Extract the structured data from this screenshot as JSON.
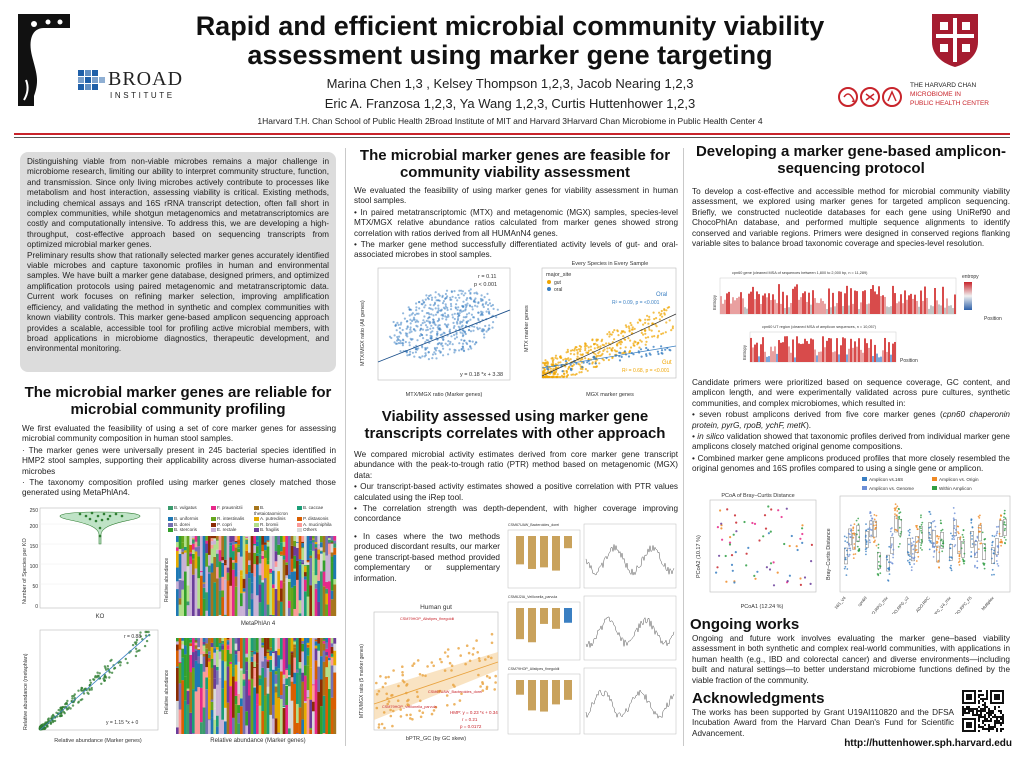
{
  "header": {
    "title_line1": "Rapid and efficient microbial community viability",
    "title_line2": "assessment using marker gene targeting",
    "authors_line1": "Marina Chen 1,3 , Kelsey Thompson 1,2,3, Jacob Nearing 1,2,3",
    "authors_line2": "Eric A. Franzosa 1,2,3, Ya Wang 1,2,3, Curtis Huttenhower 1,2,3",
    "affiliations": "1Harvard T.H. Chan School of Public Health  2Broad Institute of MIT and Harvard  3Harvard Chan Microbiome in Public Health Center 4",
    "broad_logo": "BROAD",
    "broad_logo_sub": "INSTITUTE",
    "harvard_logo_line1": "THE HARVARD CHAN",
    "harvard_logo_line2": "MICROBIOME IN",
    "harvard_logo_line3": "PUBLIC HEALTH CENTER"
  },
  "colors": {
    "accent_red": "#c8242b",
    "grey_box": "#dcdcdc",
    "scatter_blue": "#3a7fc2",
    "scatter_orange": "#f0a500",
    "scatter_green": "#2f7d32",
    "heat_red": "#d84b4b",
    "bar_tan": "#c9a25c"
  },
  "intro": {
    "paragraph1": "Distinguishing viable from non-viable microbes remains a major challenge in microbiome research, limiting our ability to interpret community structure, function, and transmission. Since only living microbes actively contribute to processes like metabolism and host interaction, assessing viability is critical. Existing methods, including chemical assays and 16S rRNA transcript detection, often fall short in complex communities, while shotgun metagenomics and metatranscriptomics are costly and computationally intensive. To address this, we are developing a high-throughput, cost-effective approach based on sequencing transcripts from optimized microbial marker genes.",
    "paragraph2": "Preliminary results show that rationally selected marker genes accurately identified viable microbes and capture taxonomic profiles in human and environmental samples. We have built a marker gene database, designed primers, and optimized amplification protocols using paired metagenomic and metatranscriptomic data. Current work focuses on refining marker selection, improving amplification efficiency, and validating the method in synthetic and complex communities with known viability controls. This marker gene-based amplicon sequencing approach provides a scalable, accessible tool for profiling active microbial members, with broad applications in microbiome diagnostics, therapeutic development, and environmental monitoring."
  },
  "section1": {
    "title": "The microbial marker genes are reliable for microbial community profiling",
    "paragraph": "We first evaluated the feasibility of using a set of core marker genes for assessing microbial community composition in human stool samples.",
    "bullet1": "· The marker genes were universally present in 245 bacterial species identified in HMP2 stool samples, supporting their applicability across diverse human-associated microbes",
    "bullet2": "· The taxonomy composition profiled using marker genes closely matched those generated using MetaPhlAn4.",
    "violin_ylabel": "Number of Species per KO",
    "violin_xlabel": "KO",
    "violin_yticks": [
      "250",
      "200",
      "150",
      "100",
      "50",
      "0"
    ],
    "stack_ylabel": "Relative abundance",
    "stack_title_top": "MetaPhlAn 4",
    "stack_title_bottom": "Relative abundance (Marker genes)",
    "scatter_ylabel": "Relative abundance (metaphlan)",
    "scatter_xlabel": "Relative abundance (Marker genes)",
    "scatter_eq": "y = 1.15 *x + 0",
    "scatter_r": "r = 0.88",
    "legend": [
      "B. vulgatus",
      "B. uniformis",
      "B. dorei",
      "B. stercoris",
      "F. prausnitzii",
      "R. intestinalis",
      "P. copri",
      "E. rectale",
      "B. thetaiotaomicron",
      "A. putredinis",
      "R. bromii",
      "B. fragilis",
      "B. caccae",
      "P. distasonis",
      "A. muciniphila",
      "Others"
    ]
  },
  "section2": {
    "title": "The microbial marker genes are feasible for community viability assessment",
    "paragraph": "We evaluated the feasibility of using marker genes for viability assessment in human stool samples.",
    "bullet1": "• In paired metatranscriptomic (MTX) and metagenomic (MGX) samples, species-level MTX/MGX relative abundance ratios calculated from marker genes showed strong correlation with ratios derived from all HUMAnN4 genes.",
    "bullet2": "• The marker gene method successfully differentiated activity levels of gut- and oral-associated microbes in stool samples.",
    "plotA_ylabel": "MTX/MGX ratio (All genes)",
    "plotA_xlabel": "MTX/MGX ratio (Marker genes)",
    "plotA_r": "r = 0.11",
    "plotA_p": "p < 0.001",
    "plotA_eq": "y = 0.18 *x + 3.38",
    "plotB_title": "Every Species in Every Sample",
    "plotB_ylabel": "MTX marker genes",
    "plotB_xlabel": "MGX marker genes",
    "plotB_legend_title": "major_site",
    "plotB_legend_gut": "gut",
    "plotB_legend_oral": "oral",
    "plotB_oral_label": "Oral",
    "plotB_oral_stat": "R² = 0.09, p = <0.001",
    "plotB_gut_label": "Gut",
    "plotB_gut_stat": "R² = 0.68, p = <0.001"
  },
  "section3": {
    "title": "Viability assessed using marker gene transcripts correlates with other approach",
    "paragraph": "We compared microbial activity estimates derived from core marker gene transcript abundance with the peak-to-trough ratio (PTR) method based on metagenomic (MGX) data:",
    "bullet1": "• Our transcript-based activity estimates showed a positive correlation with PTR values calculated using the iRep tool.",
    "bullet2": "• The correlation strength was depth-dependent, with higher coverage improving concordance",
    "bullet3": "• In cases where the two methods produced discordant results, our marker gene transcript-based method provided complementary or supplementary information.",
    "scatter_title": "Human gut",
    "scatter_ylabel": "MTX/MGX ratio (5 marker genes)",
    "scatter_xlabel": "bPTR_GC (by GC skew)",
    "scatter_eq": "HMP: y = 0.23 *x + 0.34",
    "scatter_r": "r = 0.21",
    "scatter_p": "p = 0.0172",
    "label1": "CSM79HOP_Alistipes_finegoldii",
    "label2": "CSM67UAW_Bacteroides_dorei",
    "label3": "CSM79HOP_Veillonella_parvula",
    "bar_title1": "CSM67UAW_Bacteroides_dorei",
    "bar_title2": "CSM6J2IA_Veillonella_parvula",
    "bar_title3": "CSM79HOP_Alistipes_finegoldii",
    "bar_ylabel": "Log10(MTX/MGX Ratio)"
  },
  "section4": {
    "title": "Developing a marker gene-based amplicon-sequencing protocol",
    "paragraph1": "To develop a cost-effective and accessible method for microbial community viability assessment, we explored using marker genes for targeted amplicon sequencing. Briefly, we constructed nucleotide databases for each gene using UniRef90 and ChocoPhlAn database, and performed multiple sequence alignments to identify conserved and variable regions. Primers were designed in conserved regions flanking variable sites to balance broad taxonomic coverage and species-level resolution.",
    "entropy_title1": "cpn60 gene (cleaned MSA of sequences between 1,800 to 2,000 bp, n = 11,289)",
    "entropy_title2": "cpn60 UT region (cleaned MSA of amplicon sequences, n = 10,057)",
    "entropy_ylabel": "Entropy",
    "entropy_xlabel": "Position",
    "entropy_legend": "entropy",
    "paragraph2": "Candidate primers were prioritized based on sequence coverage, GC content, and amplicon length, and were experimentally validated across pure cultures, synthetic communities, and complex microbiomes, which resulted in:",
    "bullet1_before": "• seven robust amplicons derived from five core marker genes (",
    "bullet1_genes": "cpn60 chaperonin protein, pyrG, rpoB, ychF, metK",
    "bullet1_after": ").",
    "bullet2_italic": "• in silico",
    "bullet2": " validation showed that taxonomic profiles derived from individual marker gene amplicons closely matched original genome compositions.",
    "bullet3": "• Combined marker gene amplicons produced profiles that more closely resembled the original genomes and 16S profiles compared to using a single gene or amplicon.",
    "pcoa_title": "PCoA of Bray–Curtis Distance",
    "pcoa_xlabel": "PCoA1 (12.24 %)",
    "pcoa_ylabel": "PCoA2 (10.17 %)",
    "box_ylabel": "Bray–Curtis Distance",
    "box_legend": [
      "Amplicon vs.16S",
      "Amplicon vs. Genome",
      "Amplicon vs. Origin",
      "Within Amplicon"
    ],
    "box_xticks": [
      "16S_V4",
      "cpn60",
      "ADO.RPG_mix",
      "ADO.RPG_v2",
      "ADO.RPC",
      "ADO.RPC_V4_mix",
      "ADO.RPC_F5",
      "Multiplex"
    ]
  },
  "ongoing": {
    "title": "Ongoing works",
    "paragraph": "Ongoing and future work involves evaluating the marker gene–based viability assessment in both synthetic and complex real-world communities, with applications in human health (e.g., IBD and colorectal cancer) and diverse environments—including built and natural settings—to better understand microbiome functions defined by the viable fraction of the community."
  },
  "acknowledgments": {
    "title": "Acknowledgments",
    "paragraph": "The works has been supported by Grant U19AI110820 and the DFSA Incubation Award from the Harvard Chan Dean's Fund for Scientific Advancement."
  },
  "footer": {
    "url": "http://huttenhower.sph.harvard.edu"
  }
}
